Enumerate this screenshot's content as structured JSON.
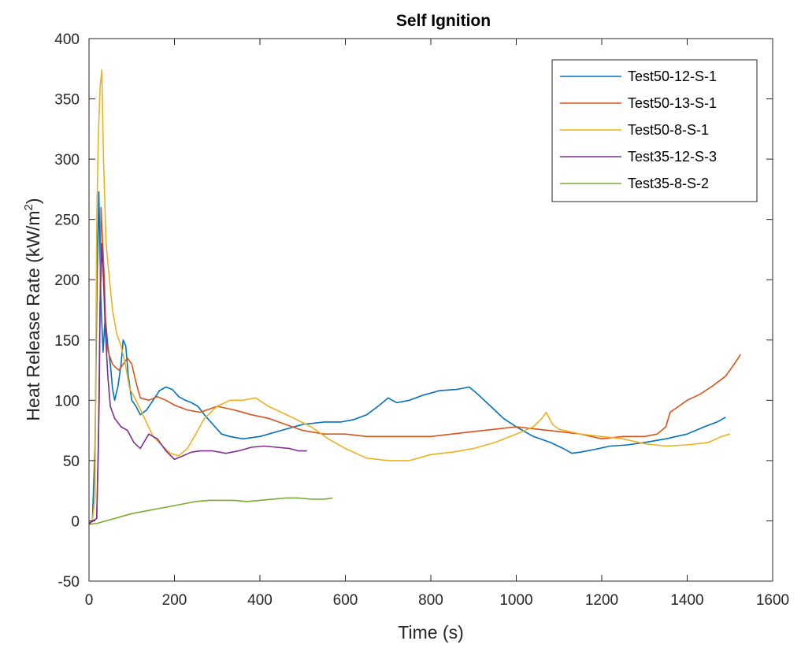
{
  "chart_data": {
    "type": "line",
    "title": "Self Ignition",
    "xlabel": "Time (s)",
    "ylabel": "Heat Release Rate (kW/m",
    "ylabel_sup": "2",
    "ylabel_end": ")",
    "xlim": [
      0,
      1600
    ],
    "ylim": [
      -50,
      400
    ],
    "xticks": [
      0,
      200,
      400,
      600,
      800,
      1000,
      1200,
      1400,
      1600
    ],
    "yticks": [
      -50,
      0,
      50,
      100,
      150,
      200,
      250,
      300,
      350,
      400
    ],
    "grid": false,
    "legend_position": "top-right",
    "series": [
      {
        "name": "Test50-12-S-1",
        "color": "#0072BD",
        "x": [
          0,
          8,
          14,
          19,
          23,
          28,
          33,
          38,
          44,
          50,
          55,
          60,
          68,
          75,
          80,
          86,
          92,
          100,
          110,
          120,
          135,
          150,
          165,
          180,
          195,
          210,
          225,
          240,
          255,
          270,
          290,
          310,
          330,
          360,
          400,
          450,
          500,
          550,
          590,
          620,
          650,
          680,
          700,
          720,
          750,
          780,
          820,
          860,
          890,
          910,
          940,
          970,
          1000,
          1040,
          1080,
          1110,
          1130,
          1150,
          1180,
          1220,
          1260,
          1300,
          1350,
          1400,
          1440,
          1470,
          1490
        ],
        "y": [
          -3,
          0,
          60,
          200,
          273,
          180,
          140,
          170,
          145,
          130,
          110,
          100,
          112,
          130,
          150,
          145,
          120,
          100,
          95,
          88,
          92,
          100,
          108,
          111,
          109,
          103,
          100,
          98,
          95,
          88,
          80,
          72,
          70,
          68,
          70,
          75,
          80,
          82,
          82,
          84,
          88,
          96,
          102,
          98,
          100,
          104,
          108,
          109,
          111,
          105,
          95,
          85,
          78,
          70,
          65,
          60,
          56,
          57,
          59,
          62,
          63,
          65,
          68,
          72,
          78,
          82,
          86
        ]
      },
      {
        "name": "Test50-13-S-1",
        "color": "#D95319",
        "x": [
          0,
          10,
          18,
          24,
          28,
          32,
          36,
          40,
          45,
          50,
          55,
          60,
          70,
          80,
          90,
          100,
          110,
          120,
          140,
          160,
          180,
          200,
          230,
          260,
          300,
          340,
          380,
          420,
          460,
          500,
          550,
          600,
          650,
          700,
          750,
          800,
          850,
          900,
          950,
          1000,
          1050,
          1100,
          1150,
          1200,
          1250,
          1300,
          1330,
          1350,
          1360,
          1380,
          1400,
          1430,
          1460,
          1490,
          1510,
          1525
        ],
        "y": [
          -2,
          0,
          2,
          100,
          260,
          230,
          200,
          150,
          140,
          135,
          130,
          128,
          125,
          130,
          135,
          130,
          115,
          102,
          100,
          103,
          100,
          96,
          92,
          90,
          95,
          92,
          88,
          85,
          80,
          75,
          72,
          72,
          70,
          70,
          70,
          70,
          72,
          74,
          76,
          78,
          76,
          74,
          72,
          68,
          70,
          70,
          72,
          78,
          90,
          95,
          100,
          105,
          112,
          120,
          130,
          138
        ]
      },
      {
        "name": "Test50-8-S-1",
        "color": "#EDB120",
        "x": [
          0,
          8,
          14,
          18,
          22,
          26,
          30,
          34,
          40,
          48,
          55,
          65,
          75,
          85,
          95,
          110,
          130,
          150,
          170,
          190,
          210,
          230,
          250,
          270,
          300,
          330,
          360,
          390,
          420,
          450,
          480,
          520,
          560,
          600,
          650,
          700,
          750,
          800,
          850,
          900,
          950,
          1000,
          1040,
          1060,
          1070,
          1085,
          1100,
          1150,
          1200,
          1250,
          1300,
          1350,
          1400,
          1450,
          1480,
          1500
        ],
        "y": [
          -2,
          0,
          20,
          250,
          320,
          360,
          374,
          300,
          230,
          200,
          175,
          155,
          145,
          130,
          110,
          100,
          85,
          70,
          63,
          56,
          54,
          60,
          72,
          85,
          95,
          100,
          100,
          102,
          95,
          90,
          85,
          78,
          68,
          60,
          52,
          50,
          50,
          55,
          57,
          60,
          65,
          72,
          78,
          85,
          90,
          80,
          76,
          72,
          70,
          68,
          64,
          62,
          63,
          65,
          70,
          72
        ]
      },
      {
        "name": "Test35-12-S-3",
        "color": "#7E2F8E",
        "x": [
          0,
          10,
          18,
          22,
          26,
          30,
          34,
          38,
          44,
          50,
          60,
          75,
          90,
          105,
          120,
          140,
          160,
          180,
          200,
          220,
          240,
          260,
          290,
          320,
          350,
          380,
          410,
          440,
          470,
          490,
          510
        ],
        "y": [
          -2,
          0,
          2,
          60,
          180,
          230,
          200,
          160,
          120,
          95,
          85,
          78,
          75,
          65,
          60,
          72,
          68,
          58,
          51,
          54,
          57,
          58,
          58,
          56,
          58,
          61,
          62,
          61,
          60,
          58,
          58
        ]
      },
      {
        "name": "Test35-8-S-2",
        "color": "#77AC30",
        "x": [
          0,
          20,
          40,
          60,
          80,
          100,
          130,
          160,
          190,
          220,
          250,
          280,
          310,
          340,
          370,
          400,
          430,
          460,
          490,
          520,
          550,
          570
        ],
        "y": [
          -3,
          -2,
          0,
          2,
          4,
          6,
          8,
          10,
          12,
          14,
          16,
          17,
          17,
          17,
          16,
          17,
          18,
          19,
          19,
          18,
          18,
          19
        ]
      }
    ]
  }
}
